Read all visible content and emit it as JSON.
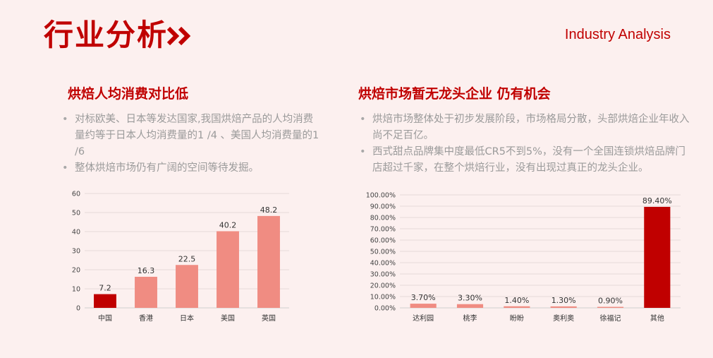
{
  "header": {
    "title": "行业分析",
    "subtitle": "Industry Analysis"
  },
  "left": {
    "heading": "烘焙人均消费对比低",
    "bullets": [
      "对标欧美、日本等发达国家,我国烘焙产品的人均消费量约等于日本人均消费量的1 /4 、美国人均消费量的1 /6",
      "整体烘焙市场仍有广阔的空间等待发掘。"
    ]
  },
  "right": {
    "heading": "烘焙市场暂无龙头企业 仍有机会",
    "bullets": [
      "烘焙市场整体处于初步发展阶段，市场格局分散，头部烘焙企业年收入尚不足百亿。",
      "西式甜点品牌集中度最低CR5不到5%，没有一个全国连锁烘焙品牌门店超过千家，在整个烘焙行业，没有出现过真正的龙头企业。"
    ]
  },
  "chart_data": [
    {
      "type": "bar",
      "categories": [
        "中国",
        "香港",
        "日本",
        "美国",
        "英国"
      ],
      "values": [
        7.2,
        16.3,
        22.5,
        40.2,
        48.2
      ],
      "value_labels": [
        "7.2",
        "16.3",
        "22.5",
        "40.2",
        "48.2"
      ],
      "y_ticks": [
        "0",
        "10",
        "20",
        "30",
        "40",
        "50",
        "60"
      ],
      "ylim": [
        0,
        60
      ],
      "colors": [
        "#c00000",
        "#f08c82",
        "#f08c82",
        "#f08c82",
        "#f08c82"
      ],
      "grid": true
    },
    {
      "type": "bar",
      "categories": [
        "达利园",
        "桃李",
        "盼盼",
        "奥利奥",
        "徐福记",
        "其他"
      ],
      "values": [
        3.7,
        3.3,
        1.4,
        1.3,
        0.9,
        89.4
      ],
      "value_labels": [
        "3.70%",
        "3.30%",
        "1.40%",
        "1.30%",
        "0.90%",
        "89.40%"
      ],
      "y_ticks": [
        "0.00%",
        "10.00%",
        "20.00%",
        "30.00%",
        "40.00%",
        "50.00%",
        "60.00%",
        "70.00%",
        "80.00%",
        "90.00%",
        "100.00%"
      ],
      "ylim": [
        0,
        100
      ],
      "colors": [
        "#f08c82",
        "#f08c82",
        "#f08c82",
        "#f08c82",
        "#f08c82",
        "#c00000"
      ],
      "grid": true
    }
  ]
}
